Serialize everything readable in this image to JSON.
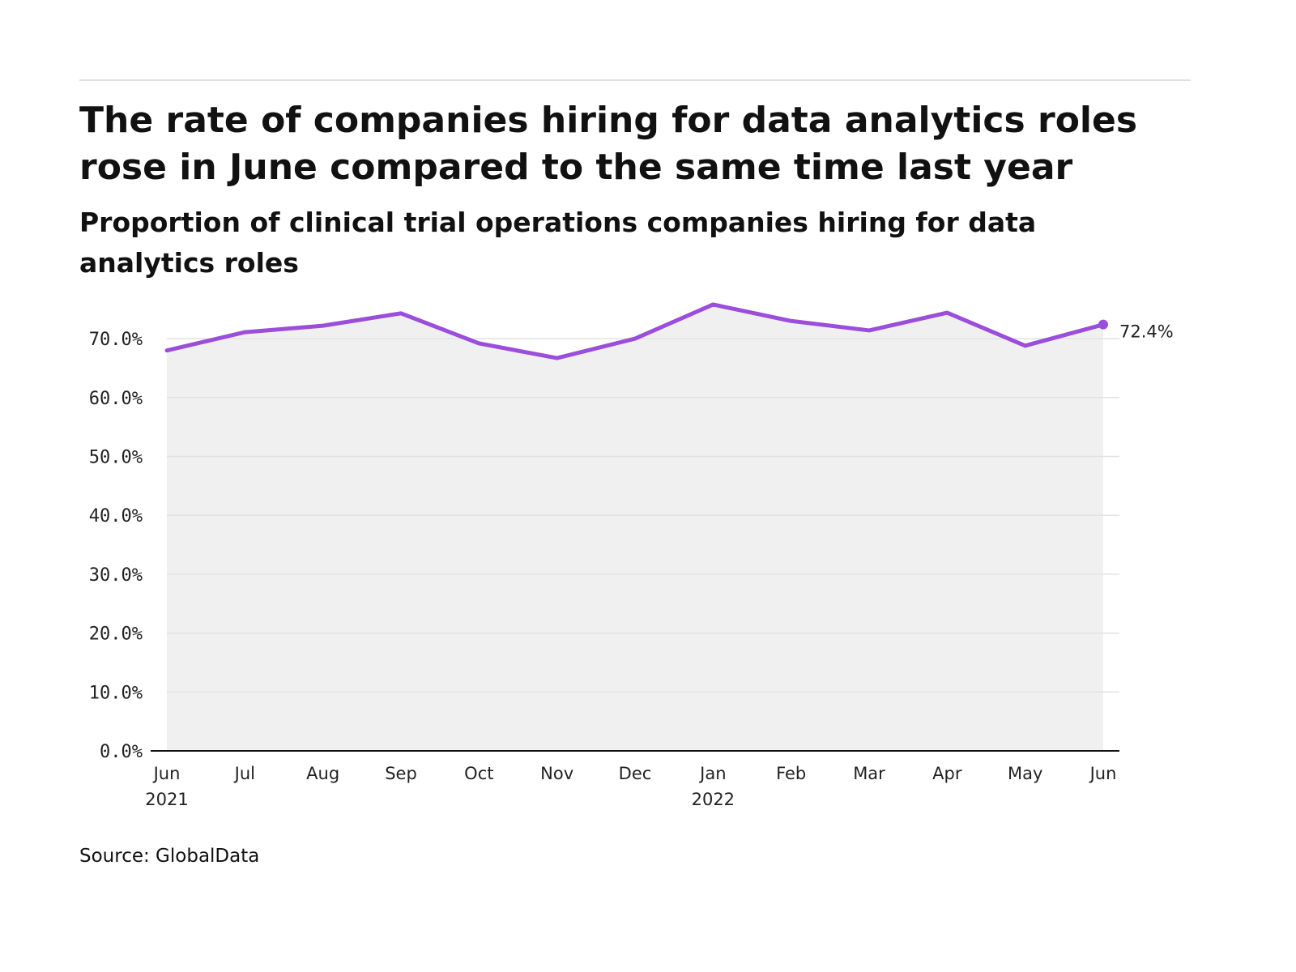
{
  "chart_data": {
    "type": "area",
    "title": "The rate of companies hiring for data analytics roles rose in June compared to the same time last year",
    "subtitle": "Proportion of clinical trial operations companies hiring for data analytics roles",
    "source": "Source: GlobalData",
    "x": [
      "Jun 2021",
      "Jul 2021",
      "Aug 2021",
      "Sep 2021",
      "Oct 2021",
      "Nov 2021",
      "Dec 2021",
      "Jan 2022",
      "Feb 2022",
      "Mar 2022",
      "Apr 2022",
      "May 2022",
      "Jun 2022"
    ],
    "x_tick_labels": [
      [
        "Jun",
        "2021"
      ],
      [
        "Jul",
        ""
      ],
      [
        "Aug",
        ""
      ],
      [
        "Sep",
        ""
      ],
      [
        "Oct",
        ""
      ],
      [
        "Nov",
        ""
      ],
      [
        "Dec",
        ""
      ],
      [
        "Jan",
        "2022"
      ],
      [
        "Feb",
        ""
      ],
      [
        "Mar",
        ""
      ],
      [
        "Apr",
        ""
      ],
      [
        "May",
        ""
      ],
      [
        "Jun",
        ""
      ]
    ],
    "series": [
      {
        "values": [
          68.0,
          71.1,
          72.2,
          74.3,
          69.2,
          66.7,
          70.0,
          75.8,
          73.0,
          71.4,
          74.4,
          68.8,
          72.4
        ]
      }
    ],
    "last_value_label": "72.4%",
    "y_ticks": [
      "0.0%",
      "10.0%",
      "20.0%",
      "30.0%",
      "40.0%",
      "50.0%",
      "60.0%",
      "70.0%"
    ],
    "y_tick_values": [
      0,
      10,
      20,
      30,
      40,
      50,
      60,
      70
    ],
    "ylim": [
      0,
      76
    ],
    "grid": true,
    "colors": {
      "line": "#9b4ddb",
      "area": "#f0f0f0",
      "grid": "#e2e2e2"
    }
  }
}
